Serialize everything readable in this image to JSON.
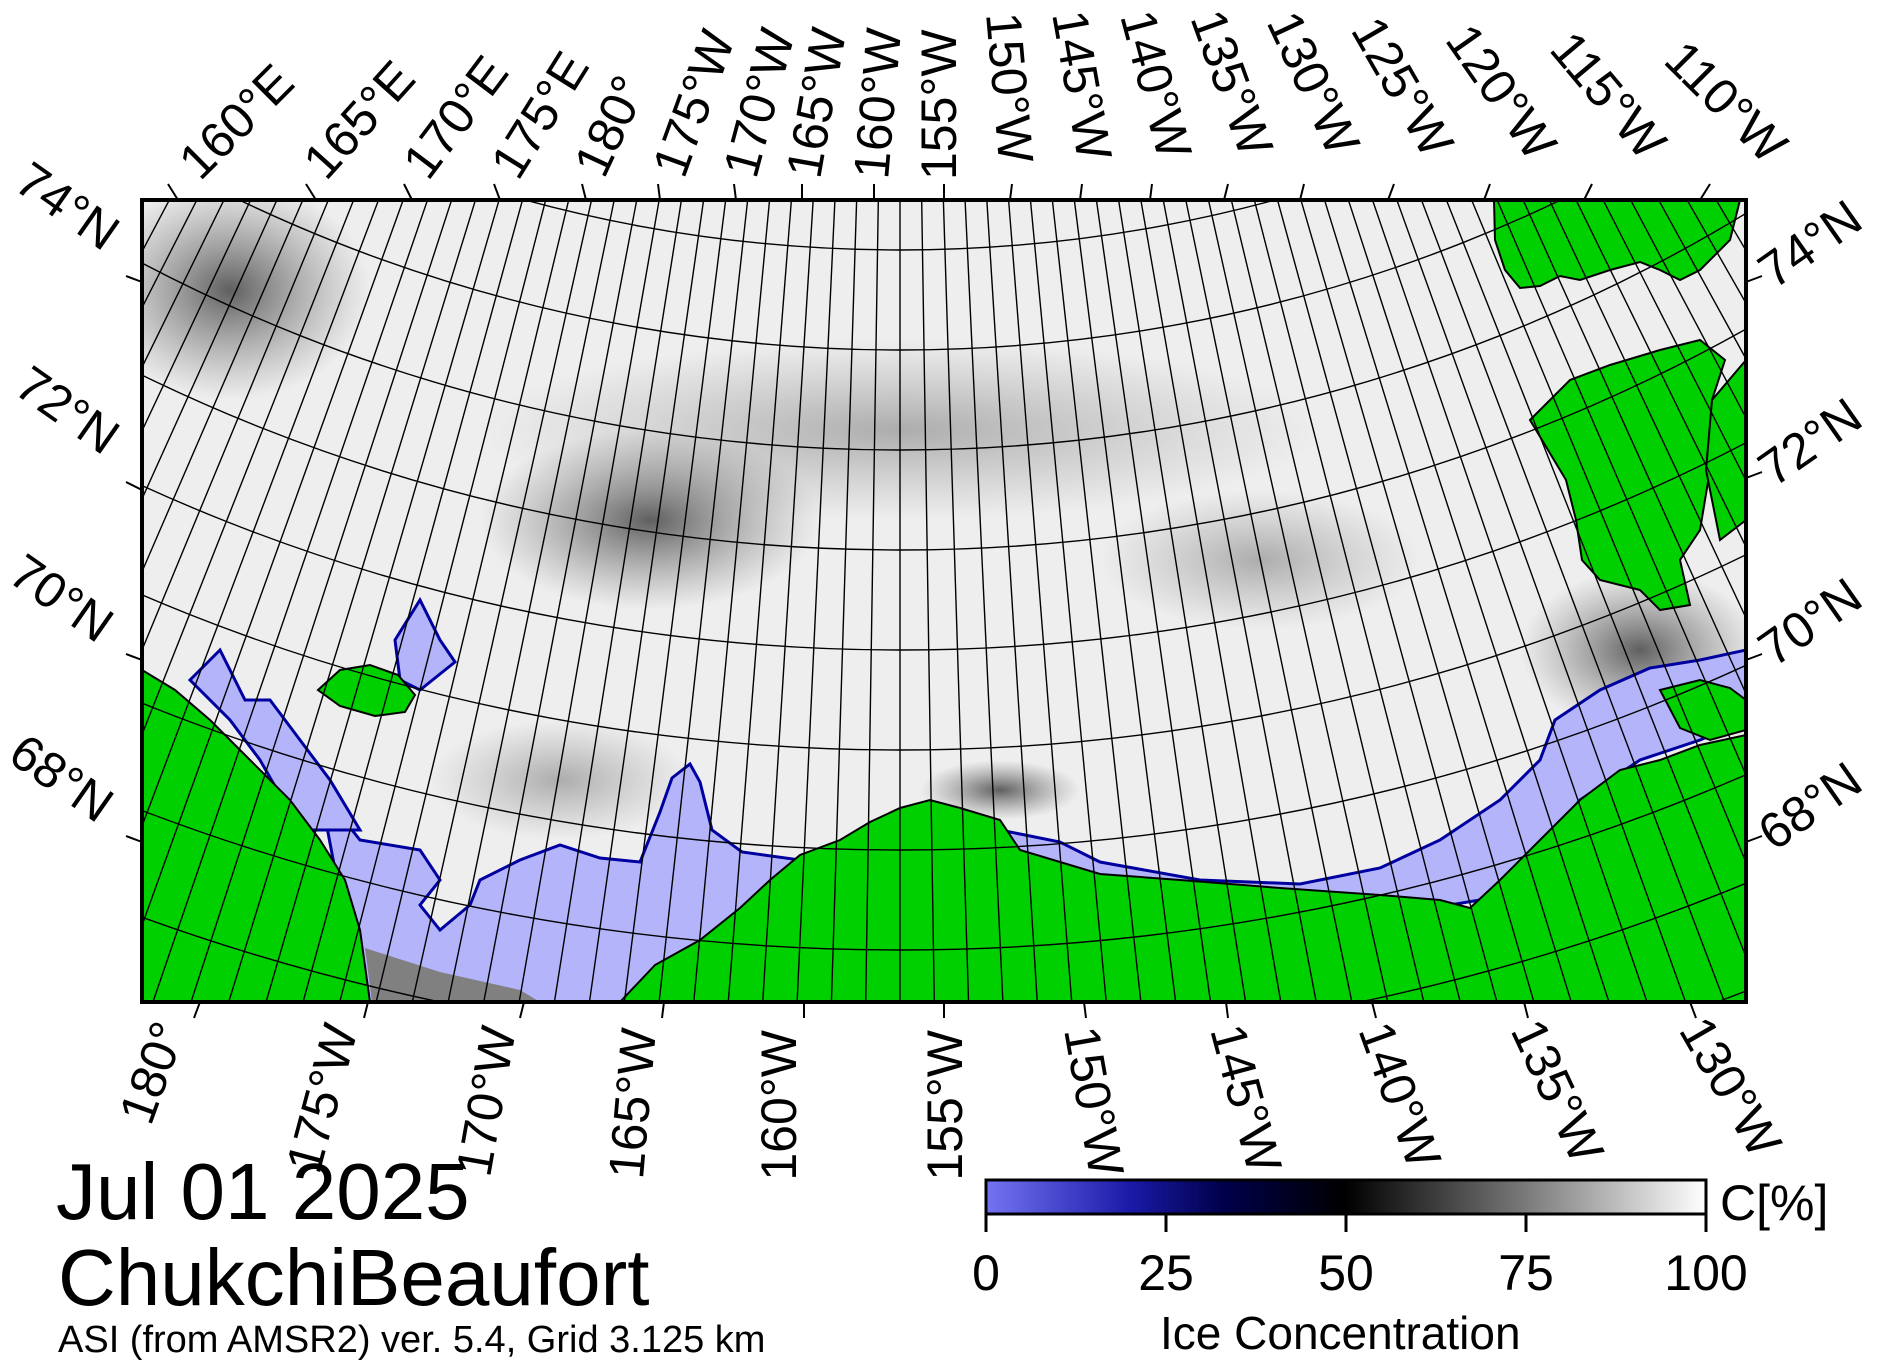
{
  "date_label": "Jul 01 2025",
  "region_label": "ChukchiBeaufort",
  "source_label": "ASI (from AMSR2) ver. 5.4,  Grid 3.125 km",
  "map": {
    "top_lon_labels": [
      "160°E",
      "165°E",
      "170°E",
      "175°E",
      "180°",
      "175°W",
      "170°W",
      "165°W",
      "160°W",
      "155°W",
      "150°W",
      "145°W",
      "140°W",
      "135°W",
      "130°W",
      "125°W",
      "120°W",
      "115°W",
      "110°W"
    ],
    "bottom_lon_labels": [
      "180°",
      "175°W",
      "170°W",
      "165°W",
      "160°W",
      "155°W",
      "150°W",
      "145°W",
      "140°W",
      "135°W",
      "130°W"
    ],
    "left_lat_labels": [
      "74°N",
      "72°N",
      "70°N",
      "68°N"
    ],
    "right_lat_labels": [
      "74°N",
      "72°N",
      "70°N",
      "68°N"
    ]
  },
  "colorbar": {
    "title": "Ice Concentration",
    "unit": "C[%]",
    "ticks": [
      "0",
      "25",
      "50",
      "75",
      "100"
    ],
    "colors": [
      "#7070f0",
      "#00005a",
      "#000000",
      "#777777",
      "#ffffff"
    ]
  },
  "colors": {
    "land": "#00d000",
    "open_water": "#b4b4fa",
    "no_data": "#808080"
  }
}
